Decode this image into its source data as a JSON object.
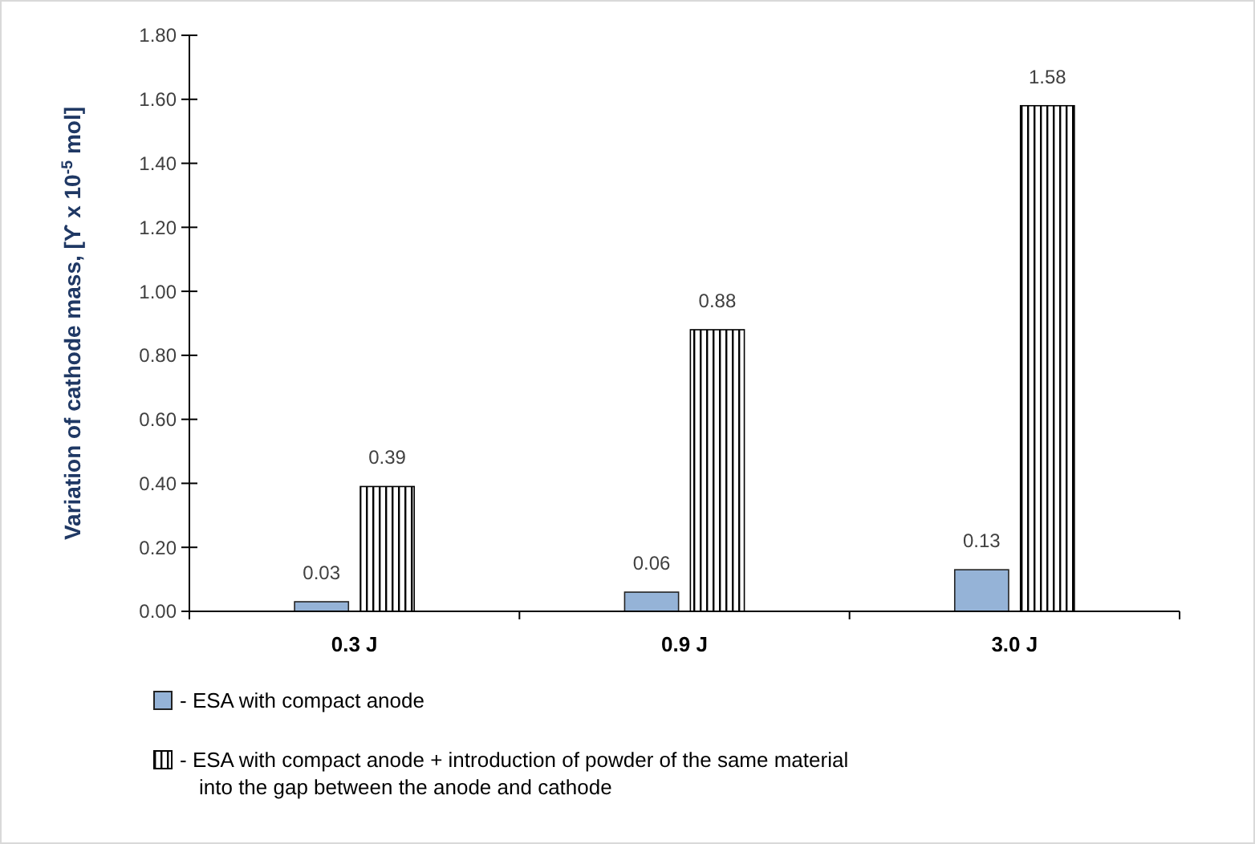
{
  "chart_data": {
    "type": "bar",
    "ylabel": "Variation of cathode mass, [ϒ x 10$^{-5}$ mol]",
    "categories": [
      "0.3 J",
      "0.9 J",
      "3.0 J"
    ],
    "series": [
      {
        "name": "- ESA with compact anode",
        "color": "#95b3d7",
        "values": [
          0.03,
          0.06,
          0.13
        ]
      },
      {
        "name": "- ESA with compact anode + introduction of powder of the same  material into the gap between the anode and cathode",
        "color": "#000000",
        "values": [
          0.39,
          0.88,
          1.58
        ]
      }
    ],
    "ylim": [
      0,
      1.8
    ],
    "yticks": [
      {
        "value": 0,
        "label": "0.00"
      },
      {
        "value": 0.2,
        "label": "0.20"
      },
      {
        "value": 0.4,
        "label": "0.40"
      },
      {
        "value": 0.6,
        "label": "0.60"
      },
      {
        "value": 0.8,
        "label": "0.80"
      },
      {
        "value": 1,
        "label": "1.00"
      },
      {
        "value": 1.2,
        "label": "1.20"
      },
      {
        "value": 1.4,
        "label": "1.40"
      },
      {
        "value": 1.6,
        "label": "1.60"
      },
      {
        "value": 1.8,
        "label": "1.80"
      }
    ],
    "grid": false,
    "legend": "bottom",
    "data_labels": true
  }
}
